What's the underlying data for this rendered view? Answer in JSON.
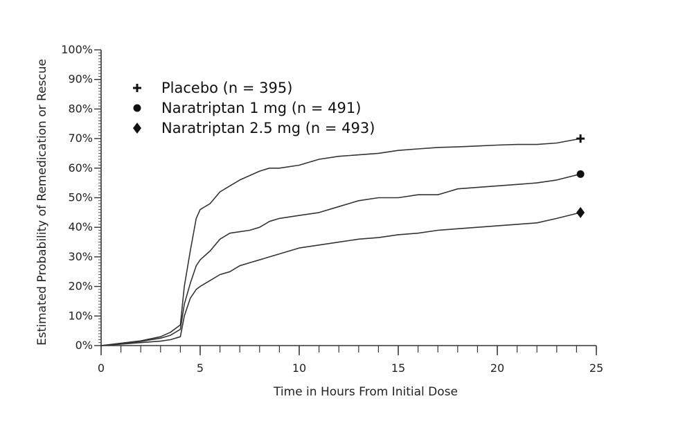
{
  "chart_data": {
    "type": "line",
    "title": "",
    "xlabel": "Time in Hours From Initial Dose",
    "ylabel": "Estimated Probability of Remedication or Rescue",
    "xlim": [
      0,
      25
    ],
    "ylim": [
      0,
      100
    ],
    "x_ticks": [
      0,
      5,
      10,
      15,
      20,
      25
    ],
    "x_tick_labels": [
      "0",
      "5",
      "10",
      "15",
      "20",
      "25"
    ],
    "y_ticks": [
      0,
      10,
      20,
      30,
      40,
      50,
      60,
      70,
      80,
      90,
      100
    ],
    "y_tick_labels": [
      "0%",
      "10%",
      "20%",
      "30%",
      "40%",
      "50%",
      "60%",
      "70%",
      "80%",
      "90%",
      "100%"
    ],
    "grid": false,
    "legend_position": "top-left",
    "series": [
      {
        "name": "Placebo (n = 395)",
        "marker": "plus",
        "x": [
          0,
          1,
          2,
          3,
          3.5,
          4,
          4.2,
          4.5,
          4.8,
          5,
          5.5,
          6,
          6.5,
          7,
          7.5,
          8,
          8.5,
          9,
          10,
          11,
          12,
          13,
          14,
          15,
          16,
          17,
          18,
          19,
          20,
          21,
          22,
          23,
          24.2
        ],
        "y": [
          0,
          0.8,
          1.6,
          3,
          4.5,
          7,
          20,
          32,
          43,
          46,
          48,
          52,
          54,
          56,
          57.5,
          59,
          60,
          60,
          61,
          63,
          64,
          64.5,
          65,
          66,
          66.5,
          67,
          67.2,
          67.5,
          67.8,
          68,
          68,
          68.5,
          70
        ]
      },
      {
        "name": "Naratriptan 1 mg (n = 491)",
        "marker": "circle",
        "x": [
          0,
          1,
          2,
          3,
          3.5,
          4,
          4.2,
          4.5,
          4.8,
          5,
          5.5,
          6,
          6.5,
          7,
          7.5,
          8,
          8.5,
          9,
          10,
          11,
          12,
          13,
          14,
          15,
          16,
          17,
          17.5,
          18,
          19,
          20,
          21,
          22,
          23,
          24.2
        ],
        "y": [
          0,
          0.7,
          1.4,
          2.5,
          3.5,
          5.5,
          14,
          21,
          27,
          29,
          32,
          36,
          38,
          38.5,
          39,
          40,
          42,
          43,
          44,
          45,
          47,
          49,
          50,
          50,
          51,
          51,
          52,
          53,
          53.5,
          54,
          54.5,
          55,
          56,
          58
        ]
      },
      {
        "name": "Naratriptan 2.5 mg (n = 493)",
        "marker": "diamond",
        "x": [
          0,
          1,
          2,
          3,
          3.5,
          4,
          4.2,
          4.5,
          4.8,
          5,
          5.5,
          6,
          6.5,
          7,
          7.5,
          8,
          9,
          10,
          11,
          12,
          13,
          14,
          15,
          16,
          17,
          18,
          19,
          20,
          21,
          22,
          23,
          24.2
        ],
        "y": [
          0,
          0.5,
          1,
          1.5,
          2,
          3,
          10,
          16,
          19,
          20,
          22,
          24,
          25,
          27,
          28,
          29,
          31,
          33,
          34,
          35,
          36,
          36.5,
          37.5,
          38,
          39,
          39.5,
          40,
          40.5,
          41,
          41.5,
          43,
          45
        ]
      }
    ]
  }
}
